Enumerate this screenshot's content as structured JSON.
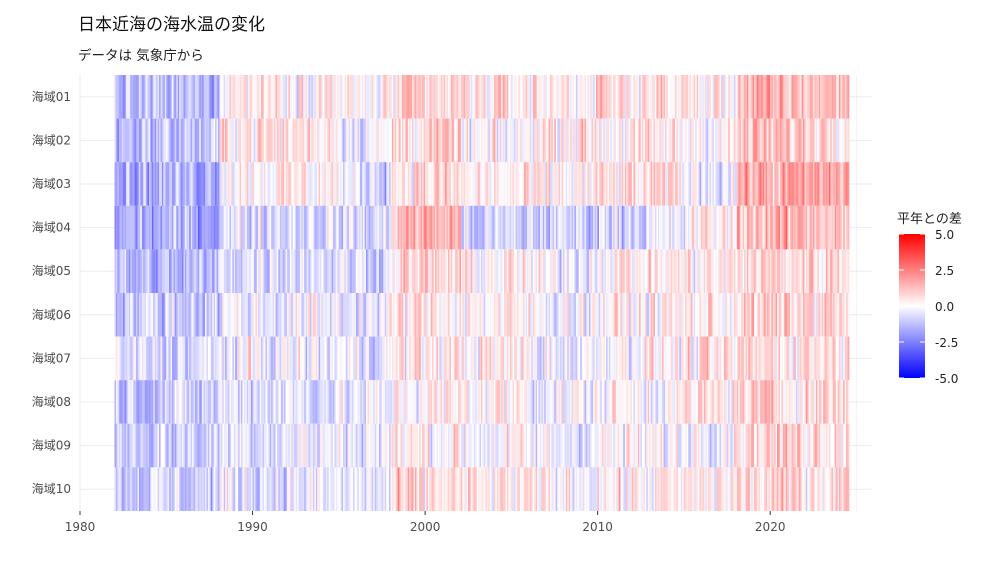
{
  "colors": {
    "low": "#0000ff",
    "mid": "#ffffff",
    "high": "#ff0000",
    "grid": "#ebebeb",
    "text": "#4d4d4d"
  },
  "chart_data": {
    "type": "heatmap",
    "title": "日本近海の海水温の変化",
    "subtitle": "データは 気象庁から",
    "xlabel": "",
    "ylabel": "",
    "x_ticks": [
      1980,
      1990,
      2000,
      2010,
      2020
    ],
    "xlim": [
      1980,
      2025.9
    ],
    "x_range": [
      1982.0,
      2024.5
    ],
    "x_step": 0.0833,
    "rows": [
      "海域01",
      "海域02",
      "海域03",
      "海域04",
      "海域05",
      "海域06",
      "海域07",
      "海域08",
      "海域09",
      "海域10"
    ],
    "legend": {
      "title": "平年との差",
      "min": -5.0,
      "max": 5.0,
      "ticks": [
        "5.0",
        "2.5",
        "0.0",
        "-2.5",
        "-5.0"
      ]
    },
    "grid": true,
    "legend_position": "right",
    "period_means": [
      {
        "from": 1982,
        "to": 1988,
        "values": [
          -1.4,
          -1.2,
          -1.5,
          -1.6,
          -1.5,
          -0.9,
          -0.8,
          -1.0,
          -0.9,
          -0.9
        ]
      },
      {
        "from": 1988,
        "to": 1995,
        "values": [
          0.5,
          0.6,
          0.3,
          -0.6,
          -0.5,
          -0.3,
          -0.3,
          -0.5,
          -0.4,
          -0.5
        ]
      },
      {
        "from": 1995,
        "to": 1998,
        "values": [
          0.0,
          -0.2,
          -0.6,
          -0.8,
          -0.7,
          -0.4,
          -0.4,
          -0.5,
          -0.3,
          -0.5
        ]
      },
      {
        "from": 1998,
        "to": 2002,
        "values": [
          0.6,
          0.8,
          0.7,
          1.5,
          0.7,
          0.5,
          0.4,
          0.2,
          0.3,
          0.6
        ]
      },
      {
        "from": 2002,
        "to": 2006,
        "values": [
          0.5,
          -0.2,
          0.2,
          -1.0,
          0.2,
          0.2,
          0.3,
          0.3,
          -0.1,
          0.3
        ]
      },
      {
        "from": 2006,
        "to": 2010,
        "values": [
          0.4,
          0.6,
          0.2,
          -0.9,
          -0.2,
          -0.1,
          -0.3,
          -0.2,
          -0.3,
          0.1
        ]
      },
      {
        "from": 2010,
        "to": 2015,
        "values": [
          0.6,
          0.3,
          0.5,
          -0.6,
          0.4,
          0.2,
          0.2,
          0.1,
          -0.1,
          0.2
        ]
      },
      {
        "from": 2015,
        "to": 2018,
        "values": [
          0.3,
          0.2,
          -0.2,
          0.3,
          0.3,
          0.4,
          0.3,
          0.4,
          0.2,
          0.3
        ]
      },
      {
        "from": 2018,
        "to": 2025,
        "values": [
          1.3,
          1.1,
          1.6,
          1.4,
          0.8,
          0.8,
          0.7,
          0.8,
          0.9,
          0.7
        ]
      }
    ]
  }
}
